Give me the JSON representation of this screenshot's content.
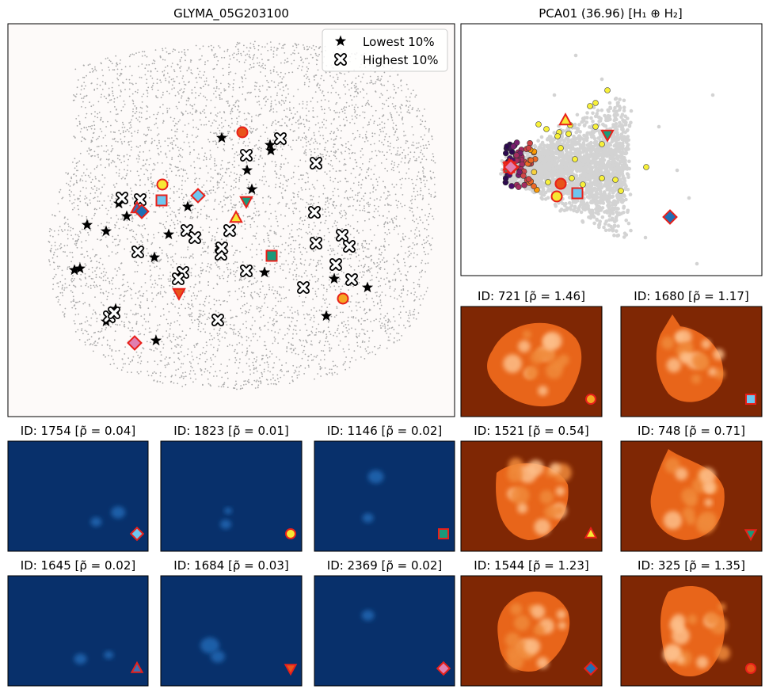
{
  "colors": {
    "low_bg": "#08306b",
    "high_bg": "#7f2704",
    "tissue_dot": "#a9a9a9",
    "pca_dot": "#d3d3d3",
    "main_bg": "#fdfaf9",
    "marker_edge": "#e8201a"
  },
  "main": {
    "title": "GLYMA_05G203100",
    "legend": {
      "lowest": "Lowest 10%",
      "highest": "Highest 10%"
    }
  },
  "pca": {
    "title": "PCA01 (36.96) [H₁ ⊕ H₂]"
  },
  "panels": [
    {
      "title": "ID: 721 [ρ̃ = 1.46]",
      "kind": "high",
      "marker": "circle",
      "color": "#f5a623"
    },
    {
      "title": "ID: 1680 [ρ̃ = 1.17]",
      "kind": "high",
      "marker": "square",
      "color": "#6ec6f0"
    },
    {
      "title": "ID: 1754 [ρ̃ = 0.04]",
      "kind": "low",
      "marker": "diamond",
      "color": "#6ec6f0"
    },
    {
      "title": "ID: 1823 [ρ̃ = 0.01]",
      "kind": "low",
      "marker": "circle",
      "color": "#f7e733"
    },
    {
      "title": "ID: 1146 [ρ̃ = 0.02]",
      "kind": "low",
      "marker": "square",
      "color": "#1a9a7a"
    },
    {
      "title": "ID: 1521 [ρ̃ = 0.54]",
      "kind": "high",
      "marker": "triangle",
      "color": "#f7e733"
    },
    {
      "title": "ID: 748 [ρ̃ = 0.71]",
      "kind": "high",
      "marker": "tri-down",
      "color": "#1a9a7a"
    },
    {
      "title": "ID: 1645 [ρ̃ = 0.02]",
      "kind": "low",
      "marker": "triangle",
      "color": "#3a6fb5"
    },
    {
      "title": "ID: 1684 [ρ̃ = 0.03]",
      "kind": "low",
      "marker": "tri-down",
      "color": "#e8541a"
    },
    {
      "title": "ID: 2369 [ρ̃ = 0.02]",
      "kind": "low",
      "marker": "diamond",
      "color": "#e07fb0"
    },
    {
      "title": "ID: 1544 [ρ̃ = 1.23]",
      "kind": "high",
      "marker": "diamond",
      "color": "#1f6fb5"
    },
    {
      "title": "ID: 325 [ρ̃ = 1.35]",
      "kind": "high",
      "marker": "circle",
      "color": "#e8541a"
    }
  ]
}
